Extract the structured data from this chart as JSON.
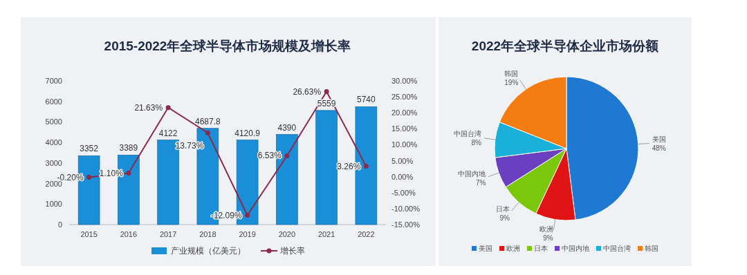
{
  "chart_data": [
    {
      "type": "bar",
      "title": "2015-2022年全球半导体市场规模及增长率",
      "categories": [
        "2015",
        "2016",
        "2017",
        "2018",
        "2019",
        "2020",
        "2021",
        "2022"
      ],
      "series": [
        {
          "name": "产业规模（亿美元）",
          "type": "bar",
          "color": "#1a8fd8",
          "values": [
            3352,
            3389,
            4122,
            4687.8,
            4120.9,
            4390,
            5559,
            5740
          ],
          "value_labels": [
            "3352",
            "3389",
            "4122",
            "4687.8",
            "4120.9",
            "4390",
            "5559",
            "5740"
          ]
        },
        {
          "name": "增长率",
          "type": "line",
          "axis": "y2",
          "color": "#8b2a4a",
          "values": [
            -0.2,
            1.1,
            21.63,
            13.73,
            -12.09,
            6.53,
            26.63,
            3.26
          ],
          "value_labels": [
            "-0.20%",
            "1.10%",
            "21.63%",
            "13.73%",
            "-12.09%",
            "6.53%",
            "26.63%",
            "3.26%"
          ]
        }
      ],
      "ylim": [
        0,
        7000
      ],
      "yticks": [
        0,
        1000,
        2000,
        3000,
        4000,
        5000,
        6000,
        7000
      ],
      "y2lim": [
        -15,
        30
      ],
      "y2ticks": [
        {
          "value": -15,
          "label": "-15.00%"
        },
        {
          "value": -10,
          "label": "-10.00%"
        },
        {
          "value": -5,
          "label": "-5.00%"
        },
        {
          "value": 0,
          "label": "0.00%"
        },
        {
          "value": 5,
          "label": "5.00%"
        },
        {
          "value": 10,
          "label": "10.00%"
        },
        {
          "value": 15,
          "label": "15.00%"
        },
        {
          "value": 20,
          "label": "20.00%"
        },
        {
          "value": 25,
          "label": "25.00%"
        },
        {
          "value": 30,
          "label": "30.00%"
        }
      ],
      "marker": "circle",
      "legend": "bottom"
    },
    {
      "type": "pie",
      "title": "2022年全球半导体企业市场份额",
      "categories": [
        "美国",
        "欧洲",
        "日本",
        "中国内地",
        "中国台湾",
        "韩国"
      ],
      "values": [
        48,
        9,
        9,
        7,
        8,
        19
      ],
      "value_labels": [
        "48%",
        "9%",
        "9%",
        "7%",
        "8%",
        "19%"
      ],
      "colors": [
        "#1f78d1",
        "#e01414",
        "#7ac70c",
        "#6a3fc0",
        "#1ab0d8",
        "#f57c10"
      ],
      "legend": "bottom"
    }
  ]
}
